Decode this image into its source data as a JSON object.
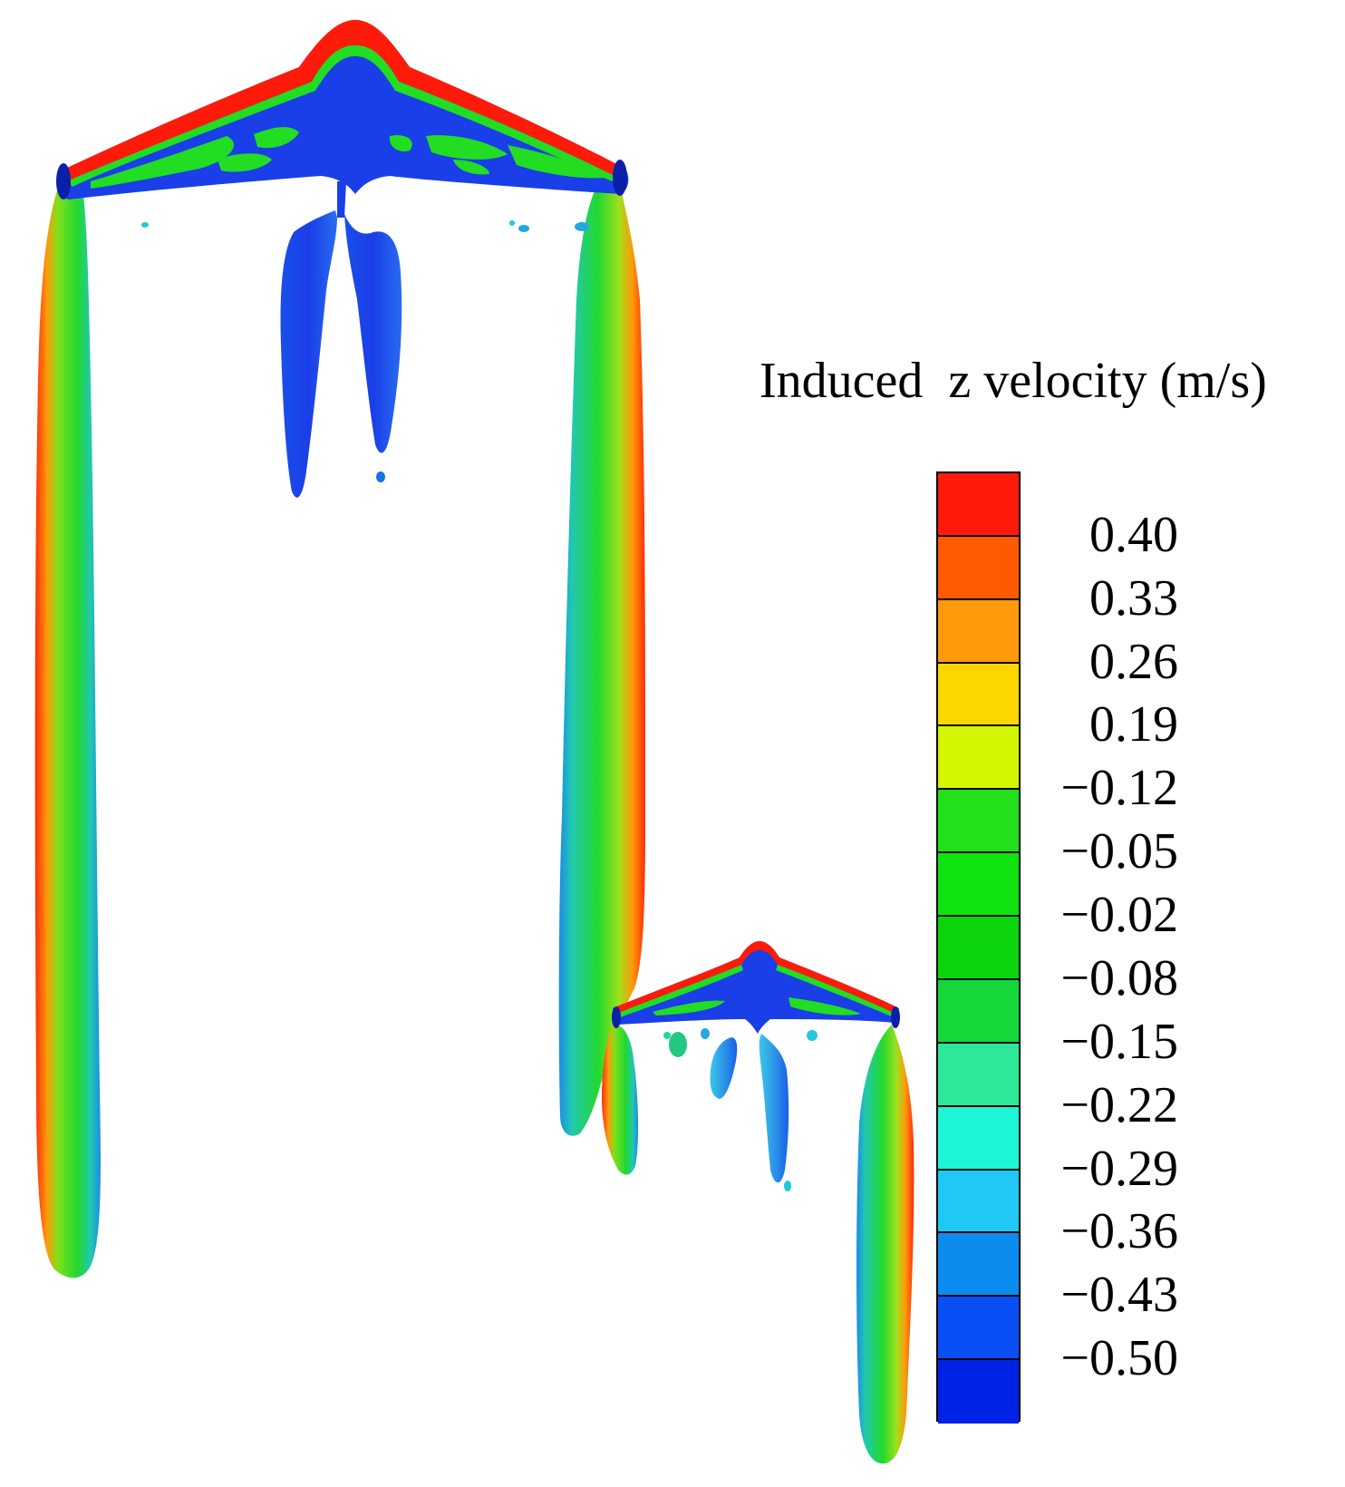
{
  "legend": {
    "title": "Induced  z velocity (m/s)",
    "labels": [
      "0.40",
      "0.33",
      "0.26",
      "0.19",
      "−0.12",
      "−0.05",
      "−0.02",
      "−0.08",
      "−0.15",
      "−0.22",
      "−0.29",
      "−0.36",
      "−0.43",
      "−0.50"
    ],
    "swatch_colors": [
      "#ff1a0a",
      "#ff5a00",
      "#ff9a0a",
      "#ffd700",
      "#d4f500",
      "#22e01a",
      "#0fe30f",
      "#0cd40c",
      "#14d83a",
      "#2ee89a",
      "#1cf5d6",
      "#1fc8f5",
      "#0d8cf0",
      "#0a4ef5",
      "#0022e6"
    ]
  },
  "colors": {
    "red": "#ff1a0a",
    "orange": "#ff8a00",
    "yellow": "#e6e600",
    "green": "#22dd22",
    "cyan": "#22c8e0",
    "blue": "#1a3ee8",
    "deep_blue": "#0a20d8"
  }
}
